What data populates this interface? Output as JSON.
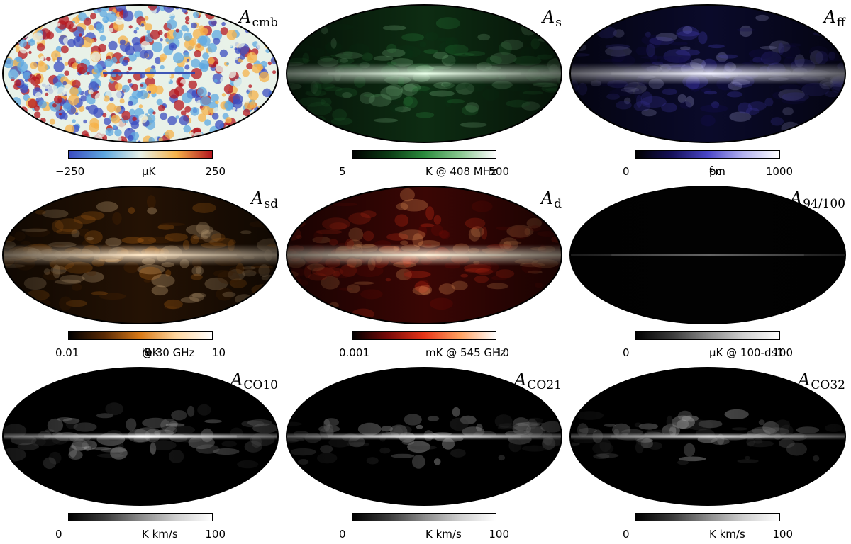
{
  "panels": [
    {
      "id": "cmb",
      "title_main": "A",
      "title_sub": "cmb",
      "cbar_min": "−250",
      "cbar_unit": "μK",
      "cbar_max": "250",
      "colors": {
        "stops": [
          "#3b4cc0",
          "#5fa8e0",
          "#e8f1e8",
          "#f5b24a",
          "#b4151e"
        ],
        "plane": "#2a45b0"
      }
    },
    {
      "id": "s",
      "title_main": "A",
      "title_sub": "s",
      "cbar_min": "5",
      "cbar_unit": "K @ 408 MHz",
      "cbar_max": "500",
      "colors": {
        "stops": [
          "#000000",
          "#0b3a14",
          "#2a8a3c",
          "#88c88f",
          "#ffffff"
        ],
        "background": "#0d2c12",
        "plane": "#e8ffe8"
      }
    },
    {
      "id": "ff",
      "title_main": "A",
      "title_sub": "ff",
      "cbar_min": "0",
      "cbar_unit": "cm",
      "cbar_unit_sup": "6",
      "cbar_unit_after": "pc",
      "cbar_max": "1000",
      "colors": {
        "stops": [
          "#000000",
          "#15105a",
          "#4a46c8",
          "#b4b2f0",
          "#ffffff"
        ],
        "background": "#0a0a2a",
        "plane": "#f0f0ff"
      }
    },
    {
      "id": "sd",
      "title_main": "A",
      "title_sub": "sd",
      "cbar_min": "0.01",
      "cbar_unit": "mK",
      "cbar_unit_sub": "RJ",
      "cbar_unit_after": " @ 30 GHz",
      "cbar_max": "10",
      "colors": {
        "stops": [
          "#000000",
          "#5a2a04",
          "#d97a18",
          "#ffd7a0",
          "#ffffff"
        ],
        "background": "#241204",
        "plane": "#ffe8c8"
      }
    },
    {
      "id": "d",
      "title_main": "A",
      "title_sub": "d",
      "cbar_min": "0.001",
      "cbar_unit": "mK @ 545 GHz",
      "cbar_max": "10",
      "colors": {
        "stops": [
          "#000000",
          "#7a0a08",
          "#e63418",
          "#ffa060",
          "#ffffff"
        ],
        "background": "#3a0604",
        "plane": "#fff0d8"
      }
    },
    {
      "id": "94_100",
      "title_main": "A",
      "title_sub": "94/100",
      "cbar_min": "0",
      "cbar_unit": "μK @ 100-ds1",
      "cbar_max": "100",
      "colors": {
        "stops": [
          "#000000",
          "#3a3a3a",
          "#8a8a8a",
          "#cfcfcf",
          "#ffffff"
        ],
        "background": "#020202",
        "plane": "#9a9a9a"
      }
    },
    {
      "id": "co10",
      "title_main": "A",
      "title_sub": "CO10",
      "cbar_min": "0",
      "cbar_unit": "K km/s",
      "cbar_max": "100",
      "colors": {
        "stops": [
          "#000000",
          "#3a3a3a",
          "#8a8a8a",
          "#cfcfcf",
          "#ffffff"
        ],
        "background": "#000000",
        "plane": "#ffffff"
      }
    },
    {
      "id": "co21",
      "title_main": "A",
      "title_sub": "CO21",
      "cbar_min": "0",
      "cbar_unit": "K km/s",
      "cbar_max": "100",
      "colors": {
        "stops": [
          "#000000",
          "#3a3a3a",
          "#8a8a8a",
          "#cfcfcf",
          "#ffffff"
        ],
        "background": "#000000",
        "plane": "#f0f0f0"
      }
    },
    {
      "id": "co32",
      "title_main": "A",
      "title_sub": "CO32",
      "cbar_min": "0",
      "cbar_unit": "K km/s",
      "cbar_max": "100",
      "colors": {
        "stops": [
          "#000000",
          "#3a3a3a",
          "#8a8a8a",
          "#cfcfcf",
          "#ffffff"
        ],
        "background": "#000000",
        "plane": "#d0d0d0"
      }
    }
  ]
}
